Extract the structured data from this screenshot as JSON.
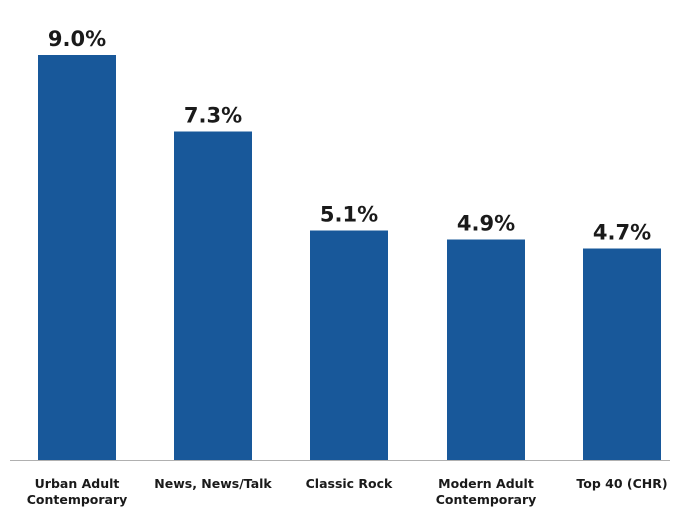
{
  "chart_data": {
    "type": "bar",
    "categories": [
      [
        "Urban Adult",
        "Contemporary"
      ],
      [
        "News, News/Talk"
      ],
      [
        "Classic Rock"
      ],
      [
        "Modern Adult",
        "Contemporary"
      ],
      [
        "Top 40 (CHR)"
      ]
    ],
    "values": [
      9.0,
      7.3,
      5.1,
      4.9,
      4.7
    ],
    "data_labels": [
      "9.0%",
      "7.3%",
      "5.1%",
      "4.9%",
      "4.7%"
    ],
    "ylim": [
      0,
      10.0
    ],
    "grid": false,
    "bar_color": "#18589a",
    "axis_color": "#b0b0b0",
    "label_color": "#1a1a1a"
  }
}
